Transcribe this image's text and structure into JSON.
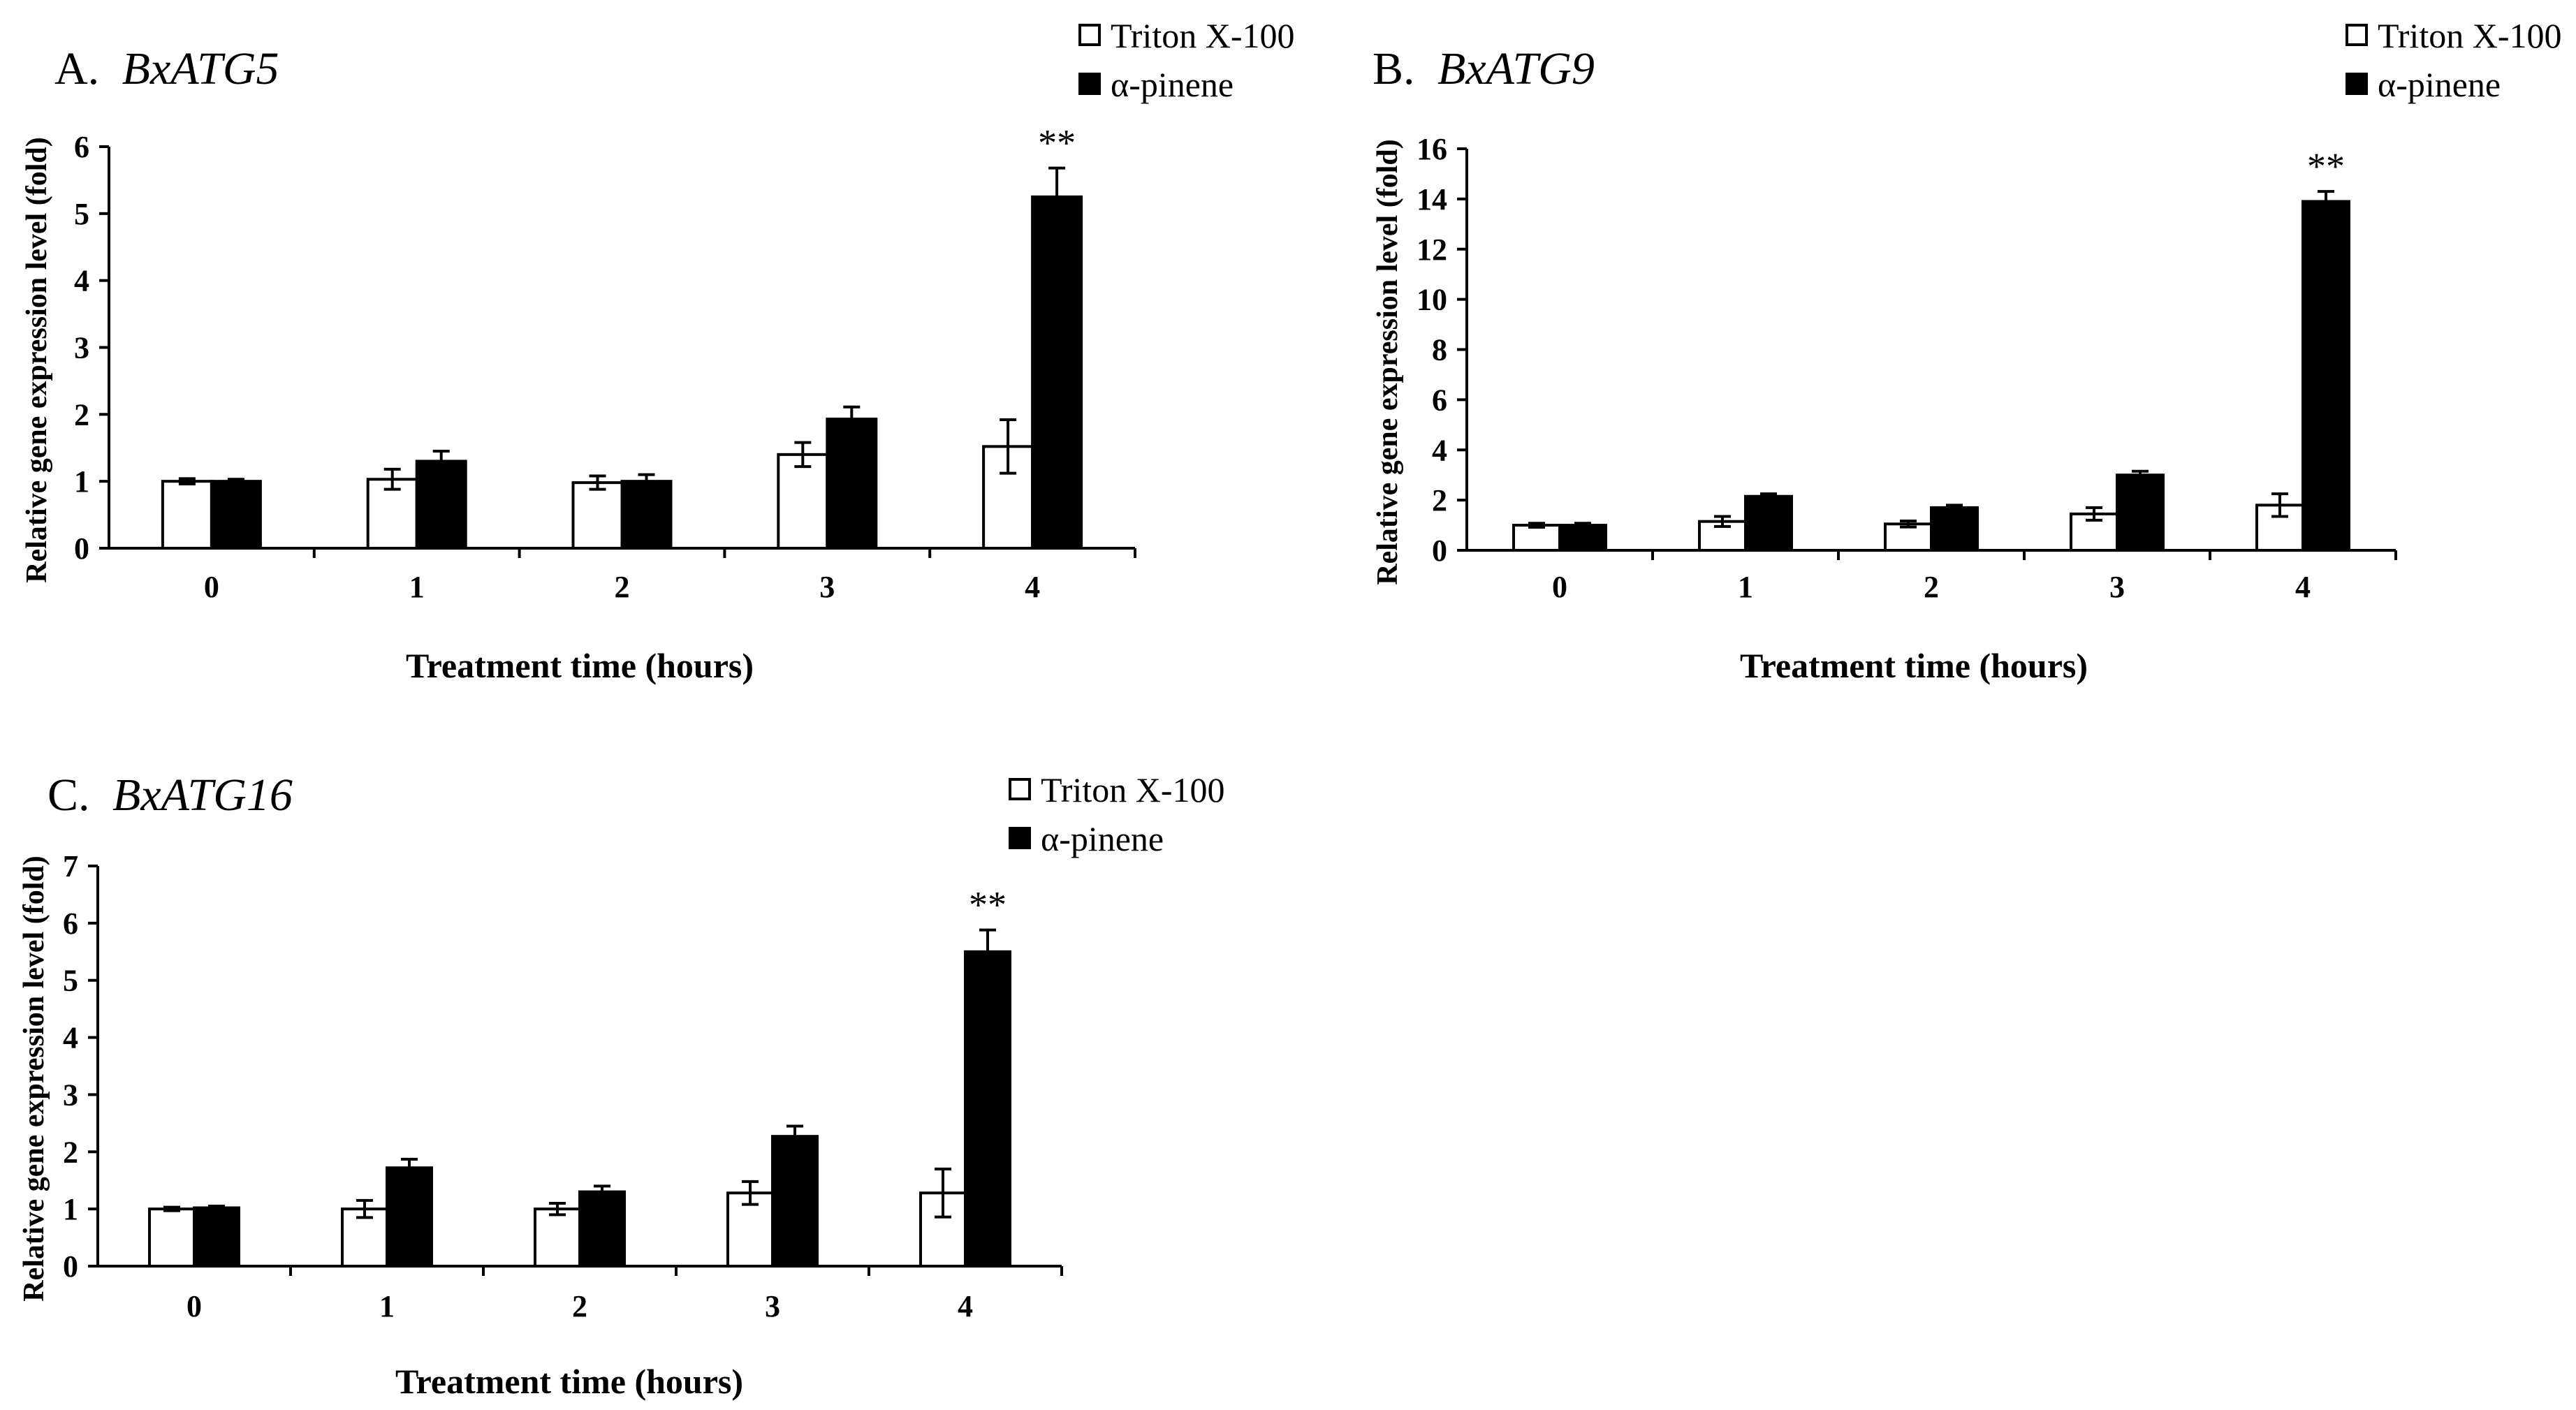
{
  "chart_data": [
    {
      "type": "bar",
      "panel": "A.",
      "gene": "BxATG5",
      "categories": [
        "0",
        "1",
        "2",
        "3",
        "4"
      ],
      "series": [
        {
          "name": "Triton X-100",
          "fill": "#ffffff",
          "values": [
            1.0,
            1.03,
            0.98,
            1.4,
            1.52
          ],
          "errors": [
            0.04,
            0.15,
            0.1,
            0.18,
            0.4
          ]
        },
        {
          "name": "α-pinene",
          "fill": "#000000",
          "values": [
            1.0,
            1.3,
            1.0,
            1.93,
            5.25
          ],
          "errors": [
            0.03,
            0.15,
            0.1,
            0.18,
            0.43
          ]
        }
      ],
      "significance": [
        {
          "category": "4",
          "label": "**"
        }
      ],
      "yticks": [
        "0",
        "1",
        "2",
        "3",
        "4",
        "5",
        "6"
      ],
      "ylim": [
        0,
        6
      ],
      "xlabel": "Treatment time (hours)",
      "ylabel": "Relative gene expression level (fold)"
    },
    {
      "type": "bar",
      "panel": "B.",
      "gene": "BxATG9",
      "categories": [
        "0",
        "1",
        "2",
        "3",
        "4"
      ],
      "series": [
        {
          "name": "Triton X-100",
          "fill": "#ffffff",
          "values": [
            1.0,
            1.15,
            1.05,
            1.45,
            1.8
          ],
          "errors": [
            0.08,
            0.2,
            0.12,
            0.25,
            0.45
          ]
        },
        {
          "name": "α-pinene",
          "fill": "#000000",
          "values": [
            1.0,
            2.15,
            1.7,
            3.0,
            13.9
          ],
          "errors": [
            0.08,
            0.1,
            0.1,
            0.15,
            0.4
          ]
        }
      ],
      "significance": [
        {
          "category": "4",
          "label": "**"
        }
      ],
      "yticks": [
        "0",
        "2",
        "4",
        "6",
        "8",
        "10",
        "12",
        "14",
        "16"
      ],
      "ylim": [
        0,
        16
      ],
      "xlabel": "Treatment time (hours)",
      "ylabel": "Relative gene expression level (fold)"
    },
    {
      "type": "bar",
      "panel": "C.",
      "gene": "BxATG16",
      "categories": [
        "0",
        "1",
        "2",
        "3",
        "4"
      ],
      "series": [
        {
          "name": "Triton X-100",
          "fill": "#ffffff",
          "values": [
            1.0,
            1.0,
            1.0,
            1.28,
            1.28
          ],
          "errors": [
            0.03,
            0.15,
            0.1,
            0.2,
            0.42
          ]
        },
        {
          "name": "α-pinene",
          "fill": "#000000",
          "values": [
            1.02,
            1.72,
            1.3,
            2.27,
            5.5
          ],
          "errors": [
            0.03,
            0.15,
            0.1,
            0.18,
            0.38
          ]
        }
      ],
      "significance": [
        {
          "category": "4",
          "label": "**"
        }
      ],
      "yticks": [
        "0",
        "1",
        "2",
        "3",
        "4",
        "5",
        "6",
        "7"
      ],
      "ylim": [
        0,
        7
      ],
      "xlabel": "Treatment time (hours)",
      "ylabel": "Relative gene expression level (fold)"
    }
  ]
}
